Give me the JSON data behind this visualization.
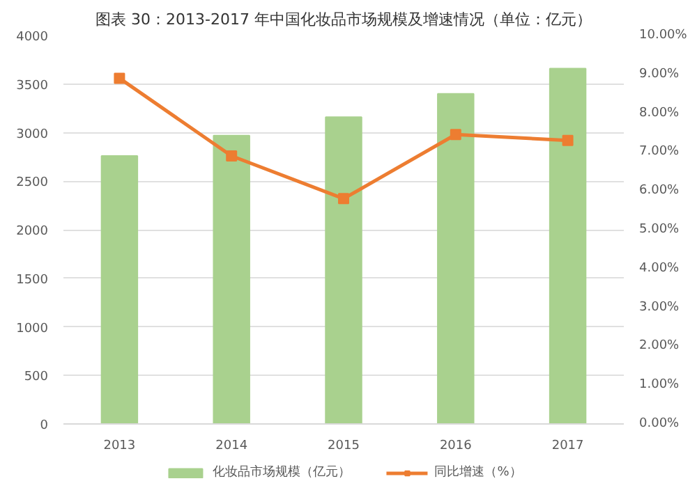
{
  "chart_data": {
    "type": "bar",
    "title": "图表 30：2013-2017 年中国化妆品市场规模及增速情况（单位：亿元）",
    "categories": [
      "2013",
      "2014",
      "2015",
      "2016",
      "2017"
    ],
    "series": [
      {
        "name": "化妆品市场规模（亿元）",
        "color": "#a9d18e",
        "values": [
          2760,
          2970,
          3160,
          3400,
          3660
        ]
      },
      {
        "name": "同比增速（%）",
        "color": "#ed7d31",
        "type": "line",
        "axis": "y2",
        "marker": "square",
        "values": [
          8.9,
          6.9,
          5.8,
          7.45,
          7.3
        ]
      }
    ],
    "ylim": [
      0,
      4000
    ],
    "yticks": [
      0,
      500,
      1000,
      1500,
      2000,
      2500,
      3000,
      3500,
      4000
    ],
    "y2lim": [
      0,
      10
    ],
    "y2ticks": [
      {
        "value": 0,
        "label": "0.00%"
      },
      {
        "value": 1,
        "label": "1.00%"
      },
      {
        "value": 2,
        "label": "2.00%"
      },
      {
        "value": 3,
        "label": "3.00%"
      },
      {
        "value": 4,
        "label": "4.00%"
      },
      {
        "value": 5,
        "label": "5.00%"
      },
      {
        "value": 6,
        "label": "6.00%"
      },
      {
        "value": 7,
        "label": "7.00%"
      },
      {
        "value": 8,
        "label": "8.00%"
      },
      {
        "value": 9,
        "label": "9.00%"
      },
      {
        "value": 10,
        "label": "10.00%"
      }
    ],
    "grid": "y",
    "legend": "bottom"
  }
}
